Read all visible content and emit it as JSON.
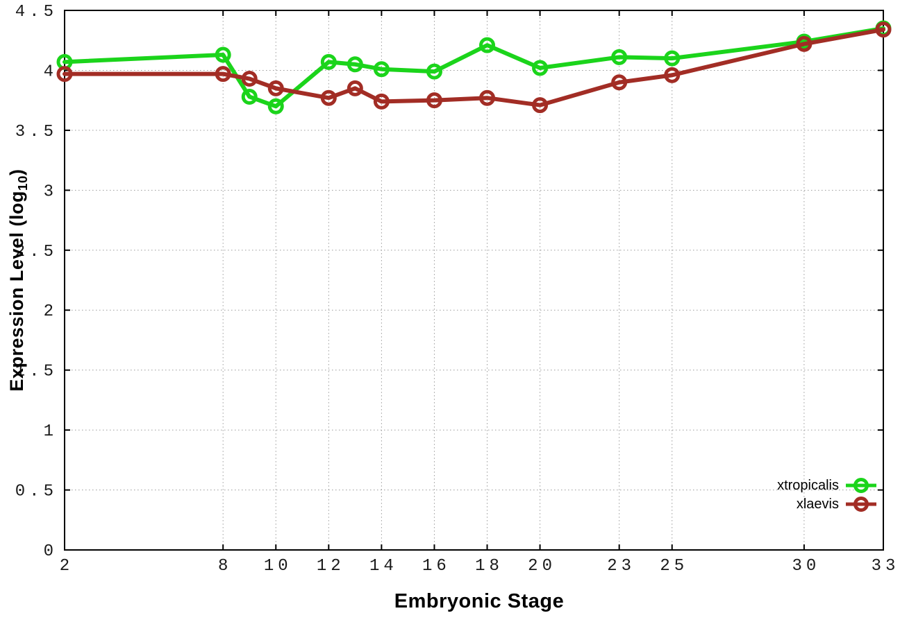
{
  "chart_data": {
    "type": "line",
    "title": "",
    "xlabel": "Embryonic Stage",
    "ylabel": "Expression Level (log10)",
    "ylabel_parts": {
      "main": "Expression Level (log",
      "sub": "10",
      "close": ")"
    },
    "xlim": [
      2,
      33
    ],
    "ylim": [
      0,
      4.5
    ],
    "grid": true,
    "legend_position": "bottom-right",
    "x": [
      2,
      8,
      9,
      10,
      12,
      13,
      14,
      16,
      18,
      20,
      23,
      25,
      30,
      33
    ],
    "series": [
      {
        "name": "xtropicalis",
        "color": "#1bd41b",
        "values": [
          4.07,
          4.13,
          3.78,
          3.7,
          4.07,
          4.05,
          4.01,
          3.99,
          4.21,
          4.02,
          4.11,
          4.1,
          4.24,
          4.35
        ]
      },
      {
        "name": "xlaevis",
        "color": "#a22d25",
        "values": [
          3.97,
          3.97,
          3.93,
          3.85,
          3.77,
          3.85,
          3.74,
          3.75,
          3.77,
          3.71,
          3.9,
          3.96,
          4.22,
          4.34
        ]
      }
    ],
    "xtick_values": [
      2,
      8,
      10,
      12,
      14,
      16,
      18,
      20,
      23,
      25,
      30,
      33
    ],
    "xtick_labels": [
      "2",
      "8",
      "10",
      "12",
      "14",
      "16",
      "18",
      "20",
      "23",
      "25",
      "30",
      "33"
    ],
    "ytick_values": [
      0,
      0.5,
      1,
      1.5,
      2,
      2.5,
      3,
      3.5,
      4,
      4.5
    ],
    "ytick_labels": [
      "0",
      "0.5",
      "1",
      "1.5",
      "2",
      "2.5",
      "3",
      "3.5",
      "4",
      "4.5"
    ]
  },
  "colors": {
    "background": "#ffffff",
    "axis": "#000000",
    "grid": "#9a9a9a",
    "tick_text": "#1a1a1a",
    "series_green": "#1bd41b",
    "series_red": "#a22d25"
  }
}
